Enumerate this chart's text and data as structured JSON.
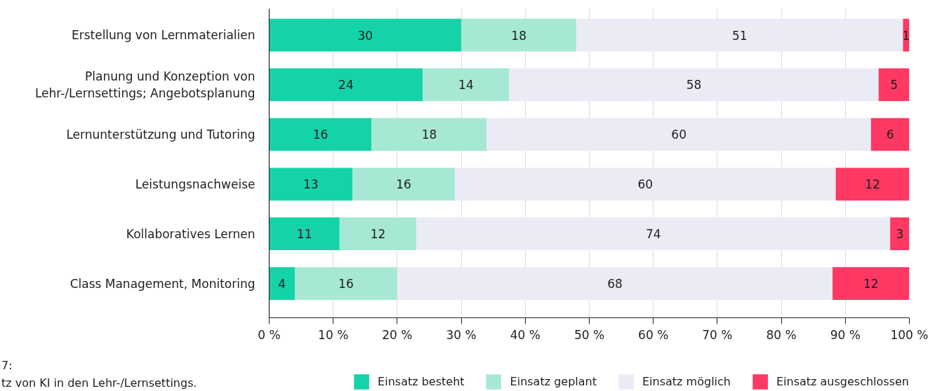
{
  "chart_data": {
    "type": "bar",
    "orientation": "horizontal",
    "stacked": true,
    "categories": [
      "Erstellung von Lernmaterialien",
      "Planung und Konzeption von\nLehr-/Lernsettings; Angebotsplanung",
      "Lernunterstützung und Tutoring",
      "Leistungsnachweise",
      "Kollaboratives Lernen",
      "Class Management, Monitoring"
    ],
    "series": [
      {
        "name": "Einsatz besteht",
        "color": "#14d3a8",
        "values": [
          30,
          24,
          16,
          13,
          11,
          4
        ],
        "value_labels": [
          "30",
          "24",
          "16",
          "13",
          "11",
          "4"
        ]
      },
      {
        "name": "Einsatz geplant",
        "color": "#a6e8d4",
        "values": [
          18,
          13.5,
          18,
          16,
          12,
          16
        ],
        "value_labels": [
          "18",
          "14",
          "18",
          "16",
          "12",
          "16"
        ]
      },
      {
        "name": "Einsatz möglich",
        "color": "#ebebf5",
        "values": [
          51,
          57.7,
          60,
          59.5,
          74,
          68
        ],
        "value_labels": [
          "51",
          "58",
          "60",
          "60",
          "74",
          "68"
        ]
      },
      {
        "name": "Einsatz ausgeschlossen",
        "color": "#ff3864",
        "values": [
          1,
          4.8,
          6,
          11.5,
          3,
          12
        ],
        "value_labels": [
          "1",
          "5",
          "6",
          "12",
          "3",
          "12"
        ]
      }
    ],
    "xlim": [
      0,
      100
    ],
    "xticks": [
      {
        "value": 0,
        "label": "0 %"
      },
      {
        "value": 10,
        "label": "10 %"
      },
      {
        "value": 20,
        "label": "20 %"
      },
      {
        "value": 30,
        "label": "30 %"
      },
      {
        "value": 40,
        "label": "40 %"
      },
      {
        "value": 50,
        "label": "50 %"
      },
      {
        "value": 60,
        "label": "60 %"
      },
      {
        "value": 70,
        "label": "70 %"
      },
      {
        "value": 80,
        "label": "80 %"
      },
      {
        "value": 90,
        "label": "90 %"
      },
      {
        "value": 100,
        "label": "100 %"
      }
    ],
    "grid": "x",
    "legend": "bottom right",
    "annotations": [
      "7:",
      "tz von KI in den Lehr-/Lernsettings."
    ]
  }
}
